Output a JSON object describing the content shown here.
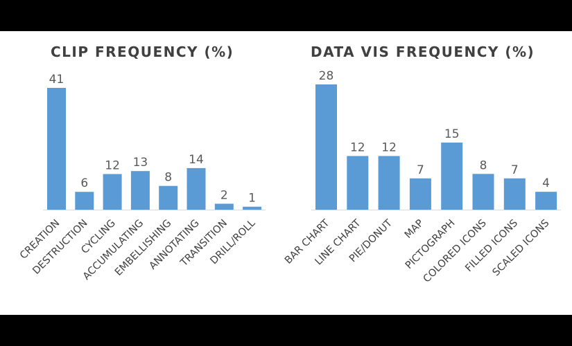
{
  "chart_data": [
    {
      "type": "bar",
      "title": "CLIP FREQUENCY (%)",
      "categories": [
        "CREATION",
        "DESTRUCTION",
        "CYCLING",
        "ACCUMULATING",
        "EMBELLISHING",
        "ANNOTATING",
        "TRANSITION",
        "DRILL/ROLL"
      ],
      "values": [
        41,
        6,
        12,
        13,
        8,
        14,
        2,
        1
      ],
      "color": "#5B9BD5",
      "ylim": [
        0,
        41
      ],
      "grid": false,
      "legend": "none"
    },
    {
      "type": "bar",
      "title": "DATA VIS FREQUENCY (%)",
      "categories": [
        "BAR CHART",
        "LINE CHART",
        "PIE/DONUT",
        "MAP",
        "PICTOGRAPH",
        "COLORED ICONS",
        "FILLED ICONS",
        "SCALED ICONS"
      ],
      "values": [
        28,
        12,
        12,
        7,
        15,
        8,
        7,
        4
      ],
      "color": "#5B9BD5",
      "ylim": [
        0,
        28
      ],
      "grid": false,
      "legend": "none"
    }
  ]
}
